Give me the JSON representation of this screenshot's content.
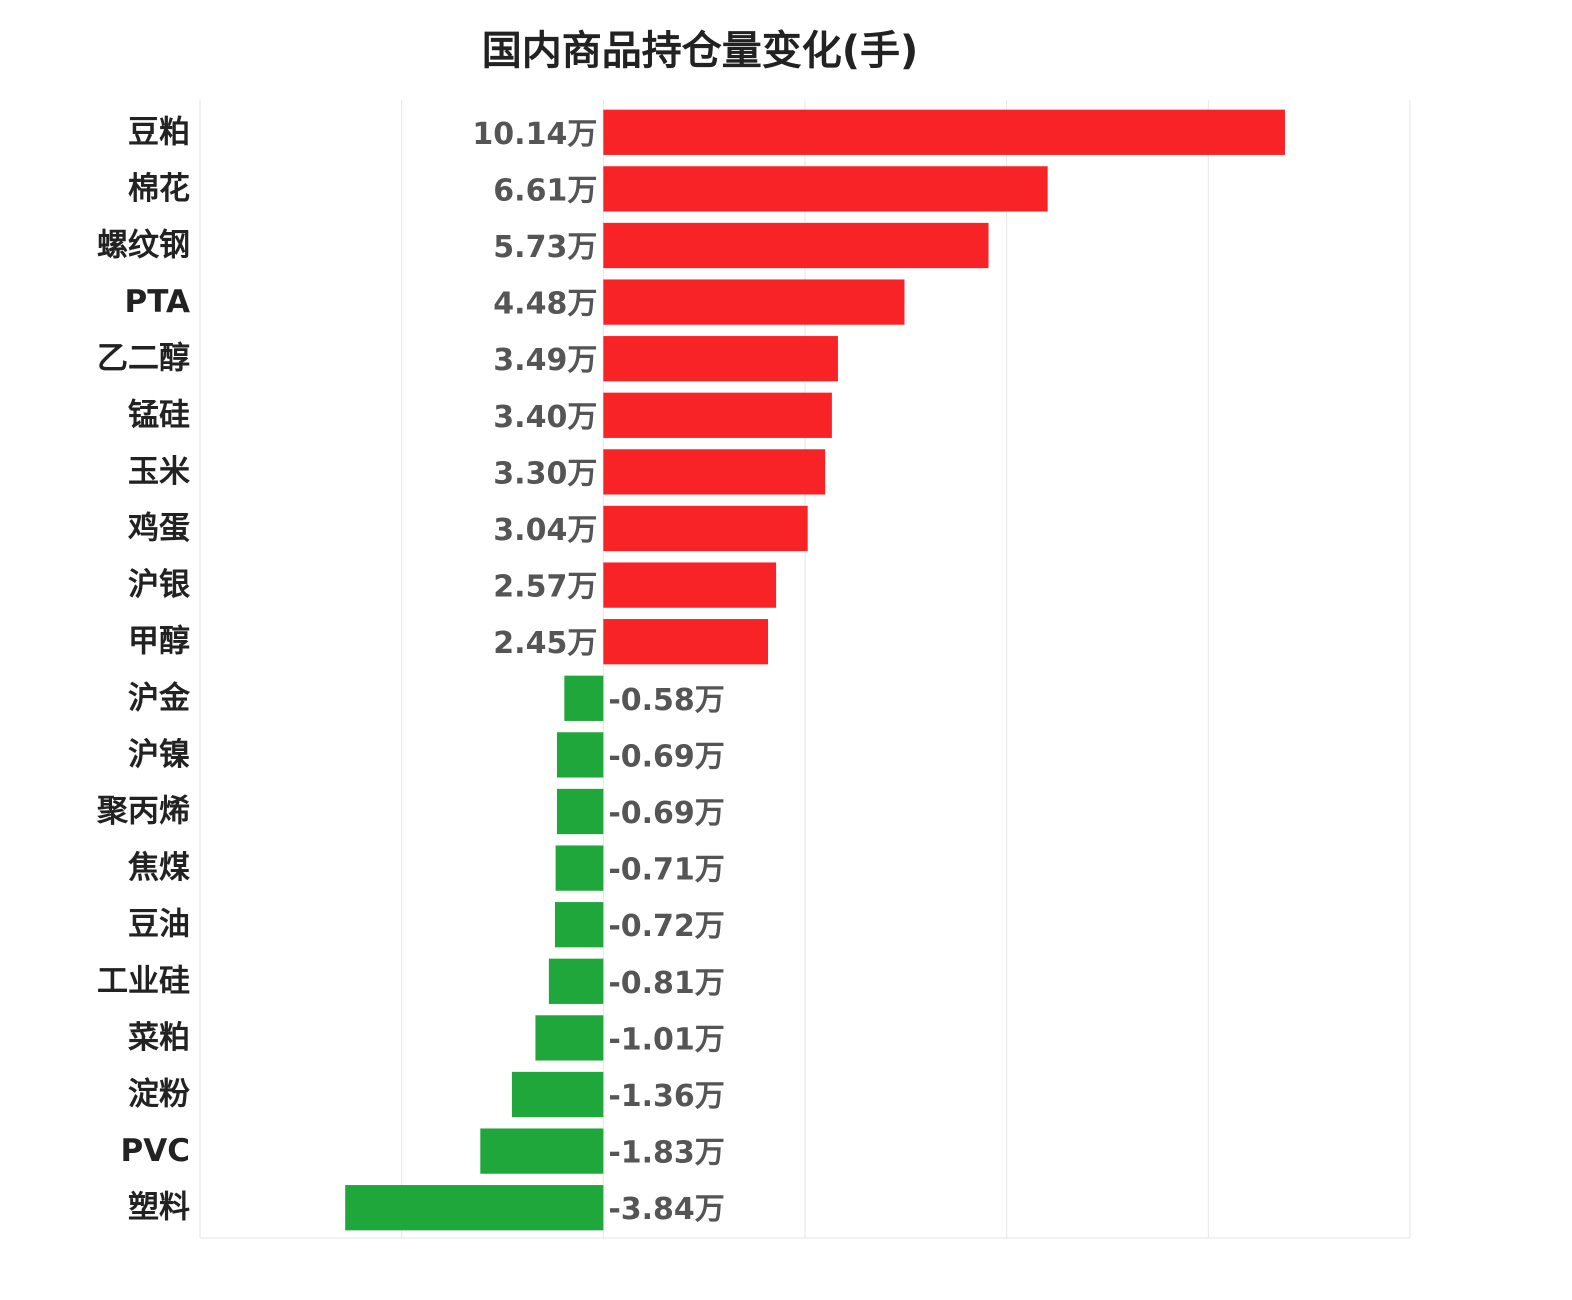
{
  "chart_data": {
    "type": "bar",
    "orientation": "horizontal",
    "title": "国内商品持仓量变化(手)",
    "xlabel": "",
    "ylabel": "",
    "categories": [
      "豆粕",
      "棉花",
      "螺纹钢",
      "PTA",
      "乙二醇",
      "锰硅",
      "玉米",
      "鸡蛋",
      "沪银",
      "甲醇",
      "沪金",
      "沪镍",
      "聚丙烯",
      "焦煤",
      "豆油",
      "工业硅",
      "菜粕",
      "淀粉",
      "PVC",
      "塑料"
    ],
    "values": [
      10.14,
      6.61,
      5.73,
      4.48,
      3.49,
      3.4,
      3.3,
      3.04,
      2.57,
      2.45,
      -0.58,
      -0.69,
      -0.69,
      -0.71,
      -0.72,
      -0.81,
      -1.01,
      -1.36,
      -1.83,
      -3.84
    ],
    "value_labels": [
      "10.14万",
      "6.61万",
      "5.73万",
      "4.48万",
      "3.49万",
      "3.40万",
      "3.30万",
      "3.04万",
      "2.57万",
      "2.45万",
      "-0.58万",
      "-0.69万",
      "-0.69万",
      "-0.71万",
      "-0.72万",
      "-0.81万",
      "-1.01万",
      "-1.36万",
      "-1.83万",
      "-3.84万"
    ],
    "xlim": [
      -6,
      12
    ],
    "grid": true,
    "legend": "none",
    "colors": {
      "positive": "#f82327",
      "negative": "#20a73b",
      "grid": "#e6e6e6"
    }
  }
}
